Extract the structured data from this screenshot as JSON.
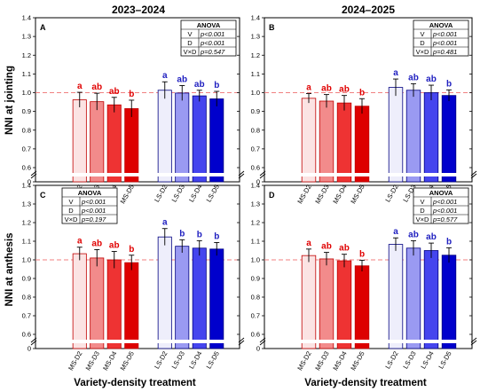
{
  "figure": {
    "col_titles": [
      "2023–2024",
      "2024–2025"
    ],
    "y_labels": [
      "NNI at jointing",
      "NNI at anthesis"
    ],
    "x_label": "Variety-density treatment",
    "anova_title": "ANOVA",
    "colors": {
      "MS-D2": "#fbe3e3",
      "MS-D3": "#f28b8b",
      "MS-D4": "#ee3333",
      "MS-D5": "#dd0000",
      "LS-D2": "#eeeefb",
      "LS-D3": "#9a9af2",
      "LS-D4": "#4545ee",
      "LS-D5": "#0000cc",
      "ms_letter": "#e00000",
      "ls_letter": "#2020c0",
      "ref_line": "#f08080"
    }
  },
  "chart_data": [
    {
      "type": "bar",
      "panel": "A",
      "season": "2023–2024",
      "stage": "jointing",
      "ylabel": "NNI at jointing",
      "xlabel": "",
      "yticks": [
        "0",
        "0.6",
        "0.7",
        "0.8",
        "0.9",
        "1.0",
        "1.1",
        "1.2",
        "1.3",
        "1.4"
      ],
      "axis_break": true,
      "reference_line": 1.0,
      "categories": [
        "MS-D2",
        "MS-D3",
        "MS-D4",
        "MS-D5",
        "LS-D2",
        "LS-D3",
        "LS-D4",
        "LS-D5"
      ],
      "values": [
        0.962,
        0.952,
        0.935,
        0.915,
        1.013,
        0.998,
        0.983,
        0.967
      ],
      "errors": [
        0.04,
        0.045,
        0.04,
        0.045,
        0.045,
        0.04,
        0.03,
        0.04
      ],
      "letters": [
        "a",
        "ab",
        "ab",
        "b",
        "a",
        "ab",
        "ab",
        "b"
      ],
      "anova": {
        "rows": [
          [
            "V",
            "p<0.001"
          ],
          [
            "D",
            "p<0.001"
          ],
          [
            "V×D",
            "p=0.547"
          ]
        ],
        "position": "top-right"
      }
    },
    {
      "type": "bar",
      "panel": "B",
      "season": "2024–2025",
      "stage": "jointing",
      "ylabel": "",
      "xlabel": "",
      "yticks": [
        "0",
        "0.6",
        "0.7",
        "0.8",
        "0.9",
        "1.0",
        "1.1",
        "1.2",
        "1.3",
        "1.4"
      ],
      "axis_break": true,
      "reference_line": 1.0,
      "categories": [
        "MS-D2",
        "MS-D3",
        "MS-D4",
        "MS-D5",
        "LS-D2",
        "LS-D3",
        "LS-D4",
        "LS-D5"
      ],
      "values": [
        0.97,
        0.955,
        0.945,
        0.928,
        1.028,
        1.013,
        1.0,
        0.985
      ],
      "errors": [
        0.025,
        0.035,
        0.04,
        0.04,
        0.045,
        0.035,
        0.04,
        0.03
      ],
      "letters": [
        "a",
        "ab",
        "ab",
        "b",
        "a",
        "ab",
        "ab",
        "b"
      ],
      "anova": {
        "rows": [
          [
            "V",
            "p<0.001"
          ],
          [
            "D",
            "p<0.001"
          ],
          [
            "V×D",
            "p=0.481"
          ]
        ],
        "position": "top-right"
      }
    },
    {
      "type": "bar",
      "panel": "C",
      "season": "2023–2024",
      "stage": "anthesis",
      "ylabel": "NNI at anthesis",
      "xlabel": "Variety-density treatment",
      "yticks": [
        "0",
        "0.6",
        "0.7",
        "0.8",
        "0.9",
        "1.0",
        "1.1",
        "1.2",
        "1.3",
        "1.4"
      ],
      "axis_break": true,
      "reference_line": 1.0,
      "categories": [
        "MS-D2",
        "MS-D3",
        "MS-D4",
        "MS-D5",
        "LS-D2",
        "LS-D3",
        "LS-D4",
        "LS-D5"
      ],
      "values": [
        1.033,
        1.01,
        1.0,
        0.985,
        1.123,
        1.073,
        1.063,
        1.058
      ],
      "errors": [
        0.035,
        0.045,
        0.045,
        0.04,
        0.045,
        0.035,
        0.04,
        0.035
      ],
      "letters": [
        "a",
        "ab",
        "ab",
        "b",
        "a",
        "b",
        "b",
        "b"
      ],
      "anova": {
        "rows": [
          [
            "V",
            "p<0.001"
          ],
          [
            "D",
            "p<0.001"
          ],
          [
            "V×D",
            "p=0.197"
          ]
        ],
        "position": "top-left"
      }
    },
    {
      "type": "bar",
      "panel": "D",
      "season": "2024–2025",
      "stage": "anthesis",
      "ylabel": "",
      "xlabel": "Variety-density treatment",
      "yticks": [
        "0",
        "0.6",
        "0.7",
        "0.8",
        "0.9",
        "1.0",
        "1.1",
        "1.2",
        "1.3",
        "1.4"
      ],
      "axis_break": true,
      "reference_line": 1.0,
      "categories": [
        "MS-D2",
        "MS-D3",
        "MS-D4",
        "MS-D5",
        "LS-D2",
        "LS-D3",
        "LS-D4",
        "LS-D5"
      ],
      "values": [
        1.023,
        1.005,
        0.995,
        0.968,
        1.083,
        1.063,
        1.05,
        1.025
      ],
      "errors": [
        0.035,
        0.035,
        0.035,
        0.03,
        0.035,
        0.04,
        0.04,
        0.04
      ],
      "letters": [
        "a",
        "ab",
        "ab",
        "b",
        "a",
        "ab",
        "ab",
        "b"
      ],
      "anova": {
        "rows": [
          [
            "V",
            "p<0.001"
          ],
          [
            "D",
            "p<0.001"
          ],
          [
            "V×D",
            "p=0.577"
          ]
        ],
        "position": "top-right"
      }
    }
  ]
}
